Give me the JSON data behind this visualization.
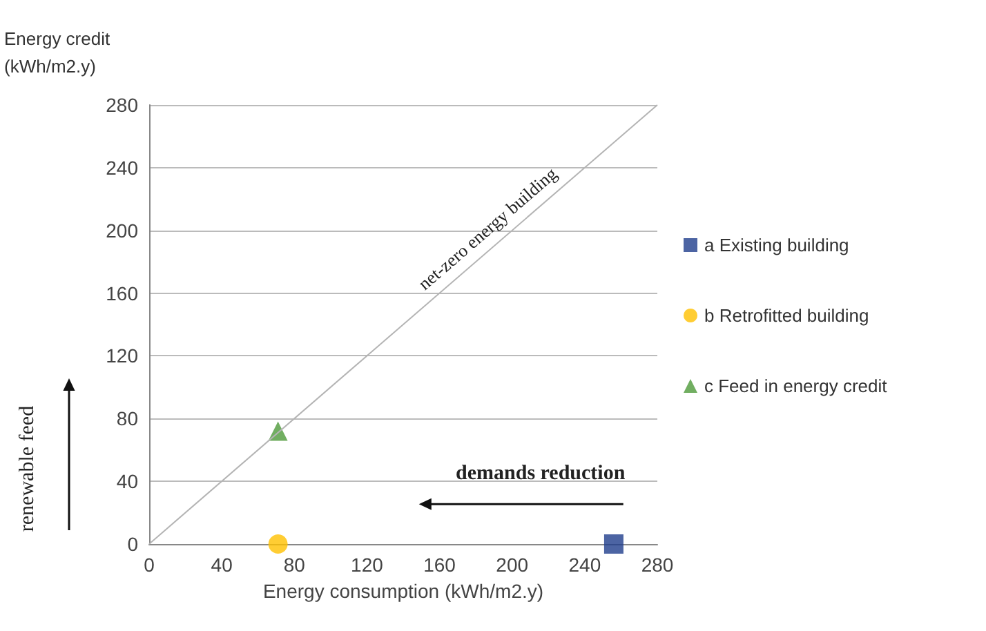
{
  "chart_data": {
    "type": "scatter",
    "xlabel": "Energy consumption (kWh/m2.y)",
    "ylabel": "Energy credit\n(kWh/m2.y)",
    "xlim": [
      0,
      280
    ],
    "xticks": [
      0,
      40,
      80,
      120,
      160,
      200,
      240,
      280
    ],
    "ylim": [
      0,
      280
    ],
    "yticks": [
      0,
      40,
      80,
      120,
      160,
      200,
      240,
      280
    ],
    "grid": "y",
    "legend": "right",
    "series": [
      {
        "name": "a Existing building",
        "color": "#1f3d8c",
        "marker": "square",
        "x": [
          256
        ],
        "values": [
          0
        ]
      },
      {
        "name": "b Retrofitted building",
        "color": "#ffc000",
        "marker": "circle",
        "x": [
          71
        ],
        "values": [
          0
        ]
      },
      {
        "name": "c Feed in energy credit",
        "color": "#4e9a3a",
        "marker": "triangle",
        "x": [
          71
        ],
        "values": [
          72
        ]
      },
      {
        "type": "line",
        "color": "#b4b4b4",
        "marker": "none",
        "x": [
          0,
          280
        ],
        "values": [
          0,
          280
        ]
      }
    ],
    "annotations": [
      "net-zero energy building",
      "demands reduction",
      "renewable feed"
    ]
  }
}
